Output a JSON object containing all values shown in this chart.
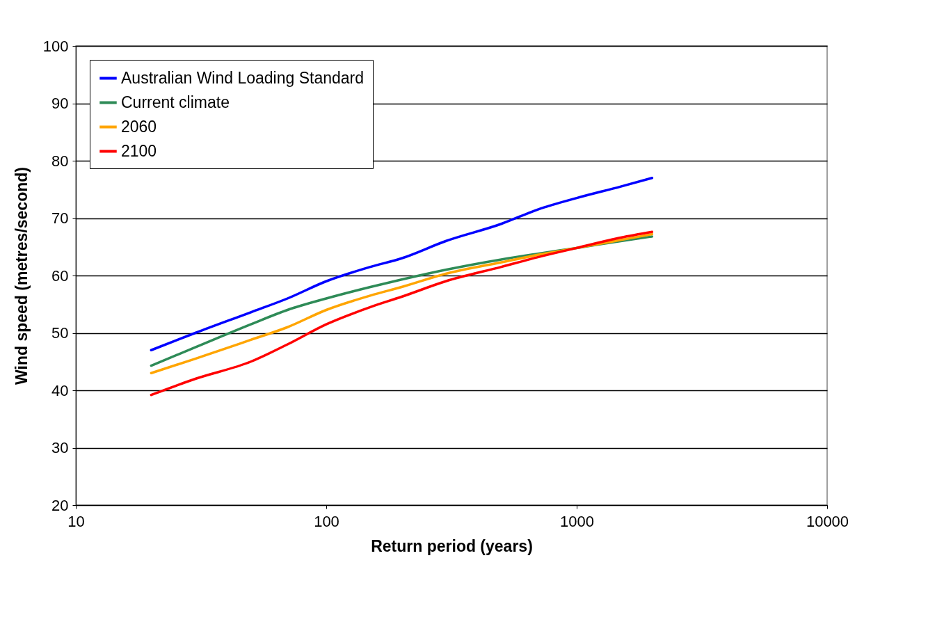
{
  "chart_data": {
    "type": "line",
    "xlabel": "Return period (years)",
    "ylabel": "Wind speed (metres/second)",
    "x": [
      20,
      30,
      50,
      70,
      100,
      150,
      200,
      300,
      500,
      700,
      1000,
      1500,
      2000
    ],
    "series": [
      {
        "name": "Australian Wind Loading Standard",
        "color": "#0000ff",
        "values": [
          47,
          50,
          53.6,
          56,
          59,
          61.5,
          63,
          66,
          69,
          71.5,
          73.5,
          75.5,
          77
        ]
      },
      {
        "name": "Current climate",
        "color": "#2e8b57",
        "values": [
          44.3,
          47.5,
          51.5,
          54,
          56,
          58,
          59.3,
          61,
          62.8,
          63.8,
          64.8,
          66,
          66.8
        ]
      },
      {
        "name": "2060",
        "color": "#ffa500",
        "values": [
          43,
          45.5,
          48.8,
          51,
          54,
          56.5,
          58,
          60.3,
          62.3,
          63.6,
          64.8,
          66.2,
          67.2
        ]
      },
      {
        "name": "2100",
        "color": "#ff0000",
        "values": [
          39.2,
          42,
          45,
          48,
          51.5,
          54.5,
          56.3,
          59,
          61.5,
          63.2,
          64.8,
          66.6,
          67.6
        ]
      }
    ],
    "xlim": [
      10,
      10000
    ],
    "xticks": [
      10,
      100,
      1000,
      10000
    ],
    "ylim": [
      20,
      100
    ],
    "yticks": [
      20,
      30,
      40,
      50,
      60,
      70,
      80,
      90,
      100
    ],
    "log": "x",
    "grid": "y",
    "legend": "top left",
    "marker": "none",
    "line_style": "solid"
  }
}
